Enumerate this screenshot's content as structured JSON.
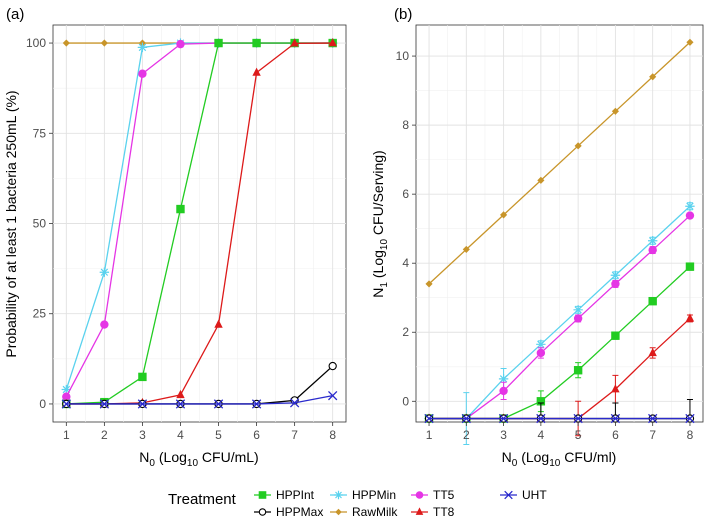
{
  "legend": {
    "title": "Treatment",
    "entries": [
      {
        "key": "HPPInt",
        "label": "HPPInt"
      },
      {
        "key": "HPPMax",
        "label": "HPPMax"
      },
      {
        "key": "HPPMin",
        "label": "HPPMin"
      },
      {
        "key": "RawMilk",
        "label": "RawMilk"
      },
      {
        "key": "TT5",
        "label": "TT5"
      },
      {
        "key": "TT8",
        "label": "TT8"
      },
      {
        "key": "UHT",
        "label": "UHT"
      }
    ]
  },
  "styles": {
    "HPPInt": {
      "color": "#22cc22",
      "marker": "square"
    },
    "HPPMax": {
      "color": "#000000",
      "marker": "circle-open"
    },
    "HPPMin": {
      "color": "#5ad2ee",
      "marker": "star"
    },
    "RawMilk": {
      "color": "#c8952a",
      "marker": "diamond"
    },
    "TT5": {
      "color": "#e535e5",
      "marker": "circle"
    },
    "TT8": {
      "color": "#dd1a1a",
      "marker": "triangle"
    },
    "UHT": {
      "color": "#2a2acc",
      "marker": "x"
    }
  },
  "chart_data": [
    {
      "type": "line",
      "panel_label": "(a)",
      "xlabel": {
        "main": "N",
        "sub": "0",
        "rest": " (Log",
        "sub2": "10",
        "tail": " CFU/mL)"
      },
      "ylabel": "Probability of at least 1 bacteria 250mL (%)",
      "x_ticks": [
        1,
        2,
        3,
        4,
        5,
        6,
        7,
        8
      ],
      "y_ticks": [
        0,
        25,
        50,
        75,
        100
      ],
      "xlim": [
        0.65,
        8.35
      ],
      "ylim": [
        -5,
        105
      ],
      "grid": true,
      "series": [
        {
          "key": "RawMilk",
          "x": [
            1,
            2,
            3,
            4,
            5,
            6,
            7,
            8
          ],
          "y": [
            100,
            100,
            100,
            100,
            100,
            100,
            100,
            100
          ]
        },
        {
          "key": "HPPMin",
          "x": [
            1,
            2,
            3,
            4,
            5,
            6,
            7,
            8
          ],
          "y": [
            4,
            36.5,
            98.8,
            100,
            100,
            100,
            100,
            100
          ]
        },
        {
          "key": "TT5",
          "x": [
            1,
            2,
            3,
            4,
            5,
            6,
            7,
            8
          ],
          "y": [
            2,
            22,
            91.5,
            99.7,
            100,
            100,
            100,
            100
          ]
        },
        {
          "key": "HPPInt",
          "x": [
            1,
            2,
            3,
            4,
            5,
            6,
            7,
            8
          ],
          "y": [
            0,
            0.5,
            7.5,
            54,
            100,
            100,
            100,
            100
          ]
        },
        {
          "key": "TT8",
          "x": [
            1,
            2,
            3,
            4,
            5,
            6,
            7,
            8
          ],
          "y": [
            0,
            0,
            0.3,
            2.5,
            22,
            91.8,
            99.9,
            100
          ]
        },
        {
          "key": "HPPMax",
          "x": [
            1,
            2,
            3,
            4,
            5,
            6,
            7,
            8
          ],
          "y": [
            0,
            0,
            0,
            0,
            0,
            0,
            1,
            10.5
          ]
        },
        {
          "key": "UHT",
          "x": [
            1,
            2,
            3,
            4,
            5,
            6,
            7,
            8
          ],
          "y": [
            0,
            0,
            0,
            0,
            0,
            0,
            0.3,
            2.3
          ]
        }
      ]
    },
    {
      "type": "line",
      "panel_label": "(b)",
      "xlabel": {
        "main": "N",
        "sub": "0",
        "rest": " (Log",
        "sub2": "10",
        "tail": " CFU/ml)"
      },
      "ylabel": {
        "main": "N",
        "sub": "1",
        "rest": " (Log",
        "sub2": "10",
        "tail": " CFU/Serving)"
      },
      "x_ticks": [
        1,
        2,
        3,
        4,
        5,
        6,
        7,
        8
      ],
      "y_ticks": [
        0,
        2,
        4,
        6,
        8,
        10
      ],
      "xlim": [
        0.65,
        8.35
      ],
      "ylim": [
        -0.6,
        10.9
      ],
      "grid": true,
      "series": [
        {
          "key": "RawMilk",
          "x": [
            1,
            2,
            3,
            4,
            5,
            6,
            7,
            8
          ],
          "y": [
            3.4,
            4.4,
            5.4,
            6.4,
            7.4,
            8.4,
            9.4,
            10.4
          ]
        },
        {
          "key": "HPPMin",
          "x": [
            1,
            2,
            3,
            4,
            5,
            6,
            7,
            8
          ],
          "y": [
            -0.5,
            -0.5,
            0.65,
            1.65,
            2.65,
            3.65,
            4.65,
            5.65
          ],
          "err": [
            0,
            0.75,
            0.3,
            0.1,
            0.1,
            0.1,
            0.1,
            0.1
          ]
        },
        {
          "key": "TT5",
          "x": [
            1,
            2,
            3,
            4,
            5,
            6,
            7,
            8
          ],
          "y": [
            -0.5,
            -0.5,
            0.3,
            1.4,
            2.4,
            3.4,
            4.38,
            5.38
          ],
          "err": [
            0,
            0,
            0.25,
            0.15,
            0.1,
            0.1,
            0.1,
            0.05
          ]
        },
        {
          "key": "HPPInt",
          "x": [
            1,
            2,
            3,
            4,
            5,
            6,
            7,
            8
          ],
          "y": [
            -0.5,
            -0.5,
            -0.5,
            0,
            0.9,
            1.9,
            2.9,
            3.9
          ],
          "err": [
            0,
            0,
            0,
            0.3,
            0.22,
            0.1,
            0.1,
            0.1
          ]
        },
        {
          "key": "TT8",
          "x": [
            1,
            2,
            3,
            4,
            5,
            6,
            7,
            8
          ],
          "y": [
            -0.5,
            -0.5,
            -0.5,
            -0.5,
            -0.5,
            0.35,
            1.4,
            2.4
          ],
          "err": [
            0,
            0,
            0,
            0,
            0.5,
            0.4,
            0.15,
            0.1
          ]
        },
        {
          "key": "HPPMax",
          "x": [
            1,
            2,
            3,
            4,
            5,
            6,
            7,
            8
          ],
          "y": [
            -0.5,
            -0.5,
            -0.5,
            -0.5,
            -0.5,
            -0.5,
            -0.5,
            -0.5
          ],
          "err_high": [
            null,
            null,
            null,
            -0.05,
            null,
            -0.05,
            null,
            0.05
          ]
        },
        {
          "key": "UHT",
          "x": [
            1,
            2,
            3,
            4,
            5,
            6,
            7,
            8
          ],
          "y": [
            -0.5,
            -0.5,
            -0.5,
            -0.5,
            -0.5,
            -0.5,
            -0.5,
            -0.5
          ]
        }
      ]
    }
  ]
}
